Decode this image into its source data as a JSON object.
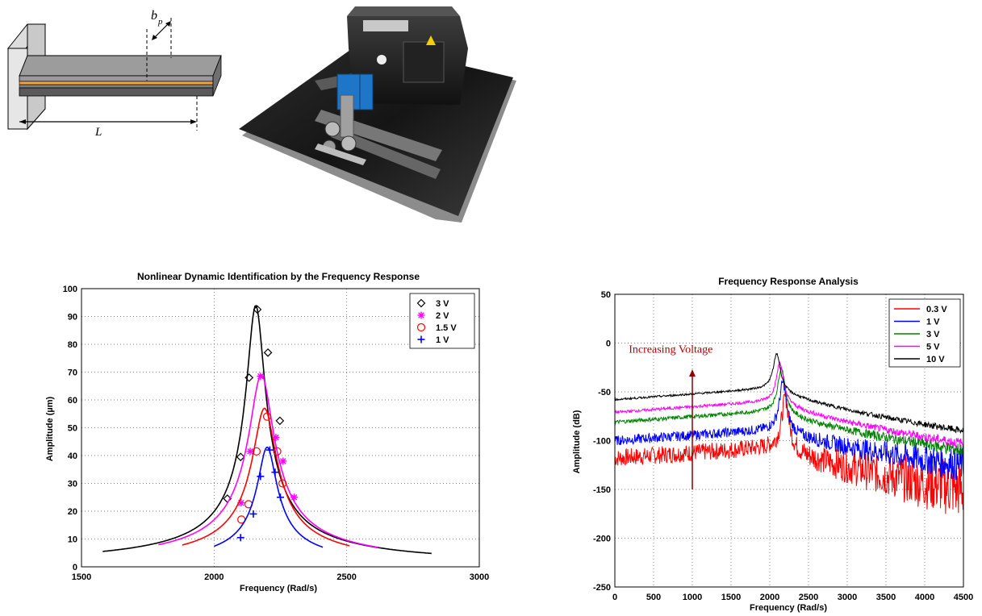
{
  "beam_diagram": {
    "width_label": "b",
    "width_label_sub": "p",
    "length_label": "L"
  },
  "photo": {
    "icon": "vibration-test-rig-photo"
  },
  "chart_data": [
    {
      "type": "scatter",
      "title": "Nonlinear Dynamic Identification by the Frequency Response",
      "xlabel": "Frequency (Rad/s)",
      "ylabel": "Amplitude (µm)",
      "xlim": [
        1500,
        3000
      ],
      "ylim": [
        0,
        100
      ],
      "xticks": [
        "1500",
        "2000",
        "2500",
        "3000"
      ],
      "yticks": [
        "0",
        "10",
        "20",
        "30",
        "40",
        "50",
        "60",
        "70",
        "80",
        "90",
        "100"
      ],
      "grid": true,
      "legend_position": "top-right",
      "series": [
        {
          "name": "3 V",
          "color": "#000000",
          "marker": "diamond",
          "points": [
            [
              2050,
              24.5
            ],
            [
              2100,
              39.5
            ],
            [
              2132,
              68
            ],
            [
              2163,
              92.5
            ],
            [
              2203,
              77
            ],
            [
              2248,
              52.5
            ]
          ],
          "fit": {
            "x": [
              1580,
              2820
            ],
            "f0": 2157,
            "peak": 94,
            "bw": 34
          }
        },
        {
          "name": "2 V",
          "color": "#ff00ff",
          "marker": "asterisk",
          "points": [
            [
              2102,
              23
            ],
            [
              2136,
              41.5
            ],
            [
              2175,
              68.5
            ],
            [
              2233,
              46.5
            ],
            [
              2260,
              38
            ],
            [
              2302,
              25
            ]
          ],
          "fit": {
            "x": [
              1790,
              2620
            ],
            "f0": 2178,
            "peak": 69,
            "bw": 45
          }
        },
        {
          "name": "1.5 V",
          "color": "#ff0000",
          "marker": "circle",
          "points": [
            [
              2103,
              17
            ],
            [
              2130,
              22.5
            ],
            [
              2160,
              41.5
            ],
            [
              2200,
              54
            ],
            [
              2238,
              41.5
            ],
            [
              2258,
              30
            ]
          ],
          "fit": {
            "x": [
              1880,
              2510
            ],
            "f0": 2190,
            "peak": 57,
            "bw": 43
          }
        },
        {
          "name": "1 V",
          "color": "#0000ff",
          "marker": "plus",
          "points": [
            [
              2100,
              10.5
            ],
            [
              2148,
              19
            ],
            [
              2175,
              32.5
            ],
            [
              2210,
              42
            ],
            [
              2230,
              34
            ],
            [
              2250,
              25
            ]
          ],
          "fit": {
            "x": [
              2000,
              2410
            ],
            "f0": 2200,
            "peak": 43,
            "bw": 35
          }
        }
      ]
    },
    {
      "type": "line",
      "title": "Frequency Response Analysis",
      "xlabel": "Frequency (Rad/s)",
      "ylabel": "Amplitude (dB)",
      "xlim": [
        0,
        4500
      ],
      "ylim": [
        -250,
        50
      ],
      "xticks": [
        "0",
        "500",
        "1000",
        "1500",
        "2000",
        "2500",
        "3000",
        "3500",
        "4000",
        "4500"
      ],
      "yticks": [
        "-250",
        "-200",
        "-150",
        "-100",
        "-50",
        "0",
        "50"
      ],
      "grid": true,
      "legend_position": "top-right",
      "annotation": "Increasing Voltage",
      "series": [
        {
          "name": "0.3 V",
          "color": "#ff0000",
          "base": -118,
          "peak_db": -56,
          "f0": 2200,
          "end_db": -150,
          "noise": 9
        },
        {
          "name": "1 V",
          "color": "#0000ff",
          "base": -100,
          "peak_db": -40,
          "f0": 2170,
          "end_db": -125,
          "noise": 5
        },
        {
          "name": "3 V",
          "color": "#008000",
          "base": -81,
          "peak_db": -25,
          "f0": 2150,
          "end_db": -110,
          "noise": 2
        },
        {
          "name": "5 V",
          "color": "#ff00ff",
          "base": -71,
          "peak_db": -20,
          "f0": 2130,
          "end_db": -103,
          "noise": 1.5
        },
        {
          "name": "10 V",
          "color": "#000000",
          "base": -58,
          "peak_db": -11,
          "f0": 2090,
          "end_db": -90,
          "noise": 1
        }
      ]
    }
  ]
}
